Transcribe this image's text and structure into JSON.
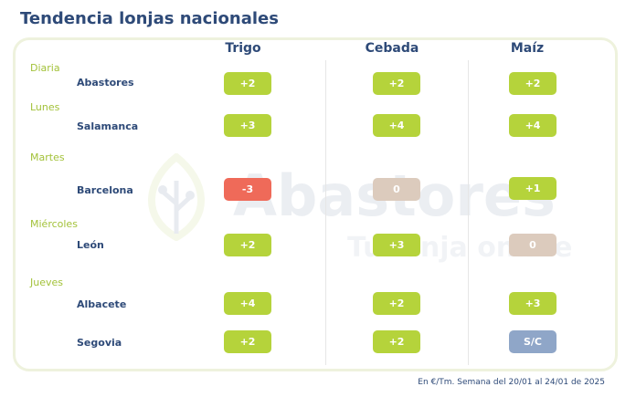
{
  "title": "Tendencia lonjas nacionales",
  "columns": [
    "Trigo",
    "Cebada",
    "Maíz"
  ],
  "watermark": {
    "brand": "Abastores",
    "tagline": "Tu lonja online"
  },
  "days": {
    "diaria": "Diaria",
    "lunes": "Lunes",
    "martes": "Martes",
    "miercoles": "Miércoles",
    "jueves": "Jueves"
  },
  "rows": [
    {
      "place": "Abastores",
      "trigo": "+2",
      "cebada": "+2",
      "maiz": "+2"
    },
    {
      "place": "Salamanca",
      "trigo": "+3",
      "cebada": "+4",
      "maiz": "+4"
    },
    {
      "place": "Barcelona",
      "trigo": "-3",
      "cebada": "0",
      "maiz": "+1"
    },
    {
      "place": "León",
      "trigo": "+2",
      "cebada": "+3",
      "maiz": "0"
    },
    {
      "place": "Albacete",
      "trigo": "+4",
      "cebada": "+2",
      "maiz": "+3"
    },
    {
      "place": "Segovia",
      "trigo": "+2",
      "cebada": "+2",
      "maiz": "S/C"
    }
  ],
  "colors": {
    "up": "#b5d33b",
    "down": "#ef6a59",
    "zero": "#dccbbd",
    "no_quote": "#8fa6c8",
    "title": "#2e4a78",
    "day_label": "#a3c23a"
  },
  "footer": "En €/Tm. Semana del 20/01 al 24/01 de 2025"
}
